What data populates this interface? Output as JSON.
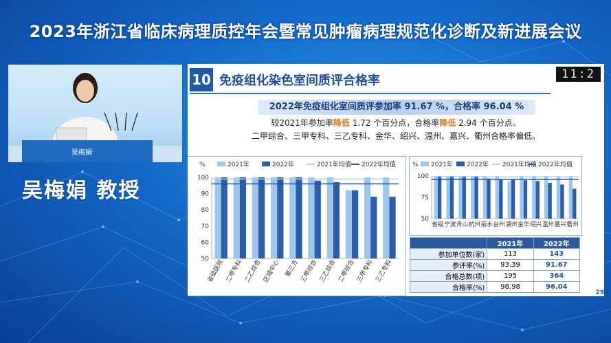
{
  "banner_title": "2023年浙江省临床病理质控年会暨常见肿瘤病理规范化诊断及新进展会议",
  "speaker": {
    "name": "吴梅娟  教授",
    "podium_label": "吴梅娟"
  },
  "slide": {
    "number": "10",
    "title": "免疫组化染色室间质评合格率",
    "clock": "11:2",
    "headline": "2022年免疫组化室间质评参加率 91.67 %，合格率 96.04 %",
    "line2": {
      "part1": "较2021年参加率",
      "emph1": "降低",
      "part2": " 1.72 个百分点，合格率",
      "emph2": "降低",
      "part3": " 2.94 个百分点。"
    },
    "line3": "二甲综合、三甲专科、三乙专科、金华、绍兴、温州、嘉兴、衢州合格率偏低。",
    "page": "29"
  },
  "colors": {
    "series_2021": "#9dc6ec",
    "series_2022": "#2b5ea8",
    "mean_2021": "#b0d2f0",
    "mean_2022": "#1f57a8"
  },
  "chart_data": [
    {
      "type": "bar",
      "unit_label": "%",
      "legend": [
        "2021年",
        "2022年",
        "2021年均值",
        "2022年均值"
      ],
      "categories": [
        "省级医院",
        "二甲专科",
        "二乙综合",
        "区域中心",
        "第三方",
        "三甲综合",
        "三乙综合",
        "二甲综合",
        "三甲专科",
        "三乙专科"
      ],
      "series": [
        {
          "name": "2021年",
          "values": [
            100,
            100,
            100,
            100,
            100,
            100,
            100,
            92,
            100,
            100
          ]
        },
        {
          "name": "2022年",
          "values": [
            100,
            100,
            100,
            100,
            100,
            98,
            97,
            92,
            88,
            88
          ]
        }
      ],
      "means": {
        "2021年均值": 99,
        "2022年均值": 96
      },
      "ylim": [
        50,
        100
      ],
      "yticks": [
        50,
        60,
        70,
        80,
        90,
        100
      ]
    },
    {
      "type": "bar",
      "unit_label": "%",
      "legend": [
        "2021年",
        "2022年",
        "2021年均值",
        "2022年均值"
      ],
      "categories": [
        "省级",
        "宁波",
        "舟山",
        "杭州",
        "丽水",
        "台州",
        "湖州",
        "金华",
        "绍兴",
        "温州",
        "嘉兴",
        "衢州"
      ],
      "series": [
        {
          "name": "2021年",
          "values": [
            100,
            100,
            100,
            100,
            100,
            100,
            94,
            100,
            100,
            100,
            100,
            100
          ]
        },
        {
          "name": "2022年",
          "values": [
            100,
            100,
            100,
            100,
            97,
            96,
            96,
            95,
            94,
            92,
            90,
            85
          ]
        }
      ],
      "means": {
        "2021年均值": 99,
        "2022年均值": 96
      },
      "ylim": [
        50,
        100
      ],
      "yticks": [
        50,
        75,
        100
      ]
    },
    {
      "type": "table",
      "columns": [
        "",
        "2021年",
        "2022年"
      ],
      "rows": [
        [
          "参加单位数(家)",
          "113",
          "143"
        ],
        [
          "参评率(%)",
          "93.39",
          "91.67"
        ],
        [
          "合格总数(项)",
          "195",
          "364"
        ],
        [
          "合格率(%)",
          "98.98",
          "96.04"
        ]
      ]
    }
  ]
}
